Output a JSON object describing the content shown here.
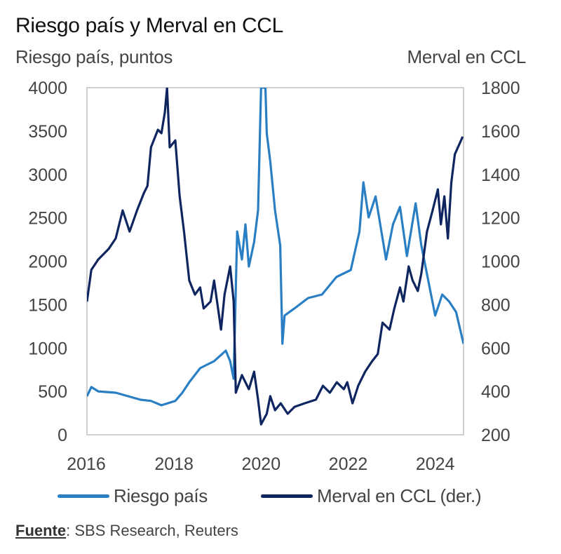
{
  "chart_data": {
    "type": "line",
    "title": "Riesgo país y Merval en CCL",
    "ylabel": "Riesgo país, puntos",
    "ylabel_right": "Merval en CCL",
    "xlim": [
      2016.0,
      2024.65
    ],
    "ylim": [
      0,
      4000
    ],
    "ylim_right": [
      200,
      1800
    ],
    "x_ticks": [
      "2016",
      "2018",
      "2020",
      "2022",
      "2024"
    ],
    "x_tick_values": [
      2016,
      2018,
      2020,
      2022,
      2024
    ],
    "y_ticks": [
      "0",
      "500",
      "1000",
      "1500",
      "2000",
      "2500",
      "3000",
      "3500",
      "4000"
    ],
    "y_tick_values": [
      0,
      500,
      1000,
      1500,
      2000,
      2500,
      3000,
      3500,
      4000
    ],
    "y_ticks_right": [
      "200",
      "400",
      "600",
      "800",
      "1000",
      "1200",
      "1400",
      "1600",
      "1800"
    ],
    "y_tick_values_right": [
      200,
      400,
      600,
      800,
      1000,
      1200,
      1400,
      1600,
      1800
    ],
    "grid": false,
    "legend_position": "bottom",
    "series": [
      {
        "name": "Riesgo país",
        "axis": "left",
        "color": "#2a7fc4",
        "x": [
          2016.0,
          2016.1,
          2016.26,
          2016.66,
          2017.23,
          2017.47,
          2017.71,
          2018.03,
          2018.19,
          2018.35,
          2018.6,
          2018.76,
          2018.92,
          2019.19,
          2019.29,
          2019.37,
          2019.45,
          2019.56,
          2019.64,
          2019.72,
          2019.84,
          2019.93,
          2020.0,
          2020.1,
          2020.13,
          2020.21,
          2020.32,
          2020.44,
          2020.49,
          2020.54,
          2020.76,
          2021.08,
          2021.4,
          2021.73,
          2022.06,
          2022.26,
          2022.35,
          2022.47,
          2022.63,
          2022.87,
          2023.03,
          2023.19,
          2023.35,
          2023.55,
          2023.68,
          2023.84,
          2024.0,
          2024.16,
          2024.32,
          2024.48,
          2024.65
        ],
        "values": [
          444,
          550,
          500,
          485,
          404,
          390,
          340,
          390,
          485,
          606,
          768,
          808,
          848,
          970,
          848,
          646,
          2343,
          2020,
          2424,
          1939,
          2222,
          2586,
          4000,
          4000,
          3475,
          3150,
          2586,
          2182,
          1050,
          1374,
          1454,
          1576,
          1616,
          1818,
          1899,
          2343,
          2909,
          2505,
          2747,
          2020,
          2424,
          2626,
          2060,
          2667,
          2182,
          1778,
          1374,
          1616,
          1535,
          1414,
          1050
        ]
      },
      {
        "name": "Merval en CCL (der.)",
        "axis": "right",
        "color": "#0e2560",
        "x": [
          2016.0,
          2016.1,
          2016.26,
          2016.5,
          2016.66,
          2016.82,
          2016.98,
          2017.15,
          2017.31,
          2017.39,
          2017.47,
          2017.63,
          2017.71,
          2017.79,
          2017.84,
          2017.9,
          2018.03,
          2018.13,
          2018.23,
          2018.35,
          2018.48,
          2018.6,
          2018.68,
          2018.84,
          2018.92,
          2019.08,
          2019.16,
          2019.29,
          2019.37,
          2019.42,
          2019.56,
          2019.72,
          2019.84,
          2019.93,
          2020.0,
          2020.13,
          2020.21,
          2020.32,
          2020.45,
          2020.61,
          2020.77,
          2021.0,
          2021.26,
          2021.42,
          2021.58,
          2021.74,
          2021.9,
          2021.98,
          2022.1,
          2022.23,
          2022.39,
          2022.55,
          2022.68,
          2022.79,
          2022.95,
          2023.06,
          2023.19,
          2023.27,
          2023.39,
          2023.48,
          2023.6,
          2023.68,
          2023.81,
          2023.94,
          2024.06,
          2024.13,
          2024.21,
          2024.29,
          2024.37,
          2024.45,
          2024.63
        ],
        "values": [
          814,
          960,
          1008,
          1057,
          1105,
          1234,
          1137,
          1234,
          1315,
          1347,
          1525,
          1606,
          1590,
          1687,
          1800,
          1525,
          1557,
          1299,
          1137,
          911,
          846,
          879,
          782,
          814,
          911,
          685,
          846,
          976,
          814,
          394,
          475,
          410,
          491,
          362,
          248,
          297,
          378,
          313,
          345,
          297,
          329,
          345,
          362,
          426,
          394,
          442,
          410,
          442,
          345,
          426,
          491,
          539,
          572,
          717,
          685,
          782,
          879,
          814,
          976,
          911,
          863,
          943,
          1137,
          1234,
          1331,
          1170,
          1299,
          1105,
          1363,
          1493,
          1574
        ]
      }
    ]
  },
  "legend": {
    "items": [
      {
        "label": "Riesgo país",
        "color": "#2a7fc4"
      },
      {
        "label": "Merval en CCL (der.)",
        "color": "#0e2560"
      }
    ]
  },
  "source": {
    "key": "Fuente",
    "text": ": SBS Research, Reuters"
  }
}
